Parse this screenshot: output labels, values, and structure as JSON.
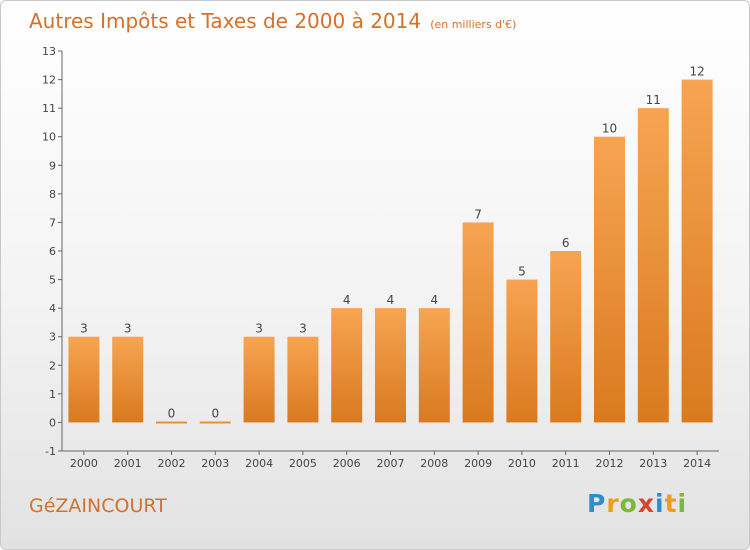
{
  "header": {
    "title": "Autres Impôts et Taxes de 2000 à 2014",
    "unit": "(en milliers d'€)"
  },
  "footer": {
    "town": "GéZAINCOURT",
    "logo": {
      "letters": [
        "P",
        "r",
        "o",
        "x",
        "i",
        "t",
        "i"
      ],
      "colors": [
        "#2e8ec9",
        "#e8a020",
        "#7bb83a",
        "#d6452c",
        "#2e8ec9",
        "#e8a020",
        "#7bb83a"
      ]
    }
  },
  "colors": {
    "bar_light": "#f7a452",
    "bar_dark": "#d97a1f",
    "title": "#d4712a",
    "axis": "#666666"
  },
  "chart_data": {
    "type": "bar",
    "title": "Autres Impôts et Taxes de 2000 à 2014",
    "subtitle": "(en milliers d'€)",
    "categories": [
      "2000",
      "2001",
      "2002",
      "2003",
      "2004",
      "2005",
      "2006",
      "2007",
      "2008",
      "2009",
      "2010",
      "2011",
      "2012",
      "2013",
      "2014"
    ],
    "values": [
      3,
      3,
      0,
      0,
      3,
      3,
      4,
      4,
      4,
      7,
      5,
      6,
      10,
      11,
      12
    ],
    "data_labels": [
      "3",
      "3",
      "0",
      "0",
      "3",
      "3",
      "4",
      "4",
      "4",
      "7",
      "5",
      "6",
      "10",
      "11",
      "12"
    ],
    "yticks": [
      "-1",
      "0",
      "1",
      "2",
      "3",
      "4",
      "5",
      "6",
      "7",
      "8",
      "9",
      "10",
      "11",
      "12",
      "13"
    ],
    "ylim": [
      -1,
      13
    ],
    "grid": false,
    "xlabel": "",
    "ylabel": ""
  }
}
